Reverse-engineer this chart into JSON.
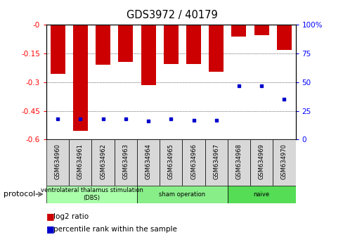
{
  "title": "GDS3972 / 40179",
  "samples": [
    "GSM634960",
    "GSM634961",
    "GSM634962",
    "GSM634963",
    "GSM634964",
    "GSM634965",
    "GSM634966",
    "GSM634967",
    "GSM634968",
    "GSM634969",
    "GSM634970"
  ],
  "log2_ratio": [
    -0.255,
    -0.555,
    -0.21,
    -0.195,
    -0.315,
    -0.205,
    -0.205,
    -0.245,
    -0.06,
    -0.055,
    -0.13
  ],
  "percentile_rank": [
    18,
    18,
    18,
    18,
    16,
    18,
    17,
    17,
    47,
    47,
    35
  ],
  "groups": [
    {
      "label": "ventrolateral thalamus stimulation\n(DBS)",
      "start": 0,
      "end": 3,
      "color": "#aaffaa"
    },
    {
      "label": "sham operation",
      "start": 4,
      "end": 7,
      "color": "#88ee88"
    },
    {
      "label": "naive",
      "start": 8,
      "end": 10,
      "color": "#55dd55"
    }
  ],
  "ylim_left": [
    -0.6,
    0.0
  ],
  "ylim_right": [
    0,
    100
  ],
  "yticks_left": [
    0.0,
    -0.15,
    -0.3,
    -0.45,
    -0.6
  ],
  "yticks_right": [
    0,
    25,
    50,
    75,
    100
  ],
  "bar_color": "#cc0000",
  "dot_color": "#0000cc",
  "background_color": "#ffffff",
  "protocol_label": "protocol",
  "legend_log2": "log2 ratio",
  "legend_pct": "percentile rank within the sample"
}
